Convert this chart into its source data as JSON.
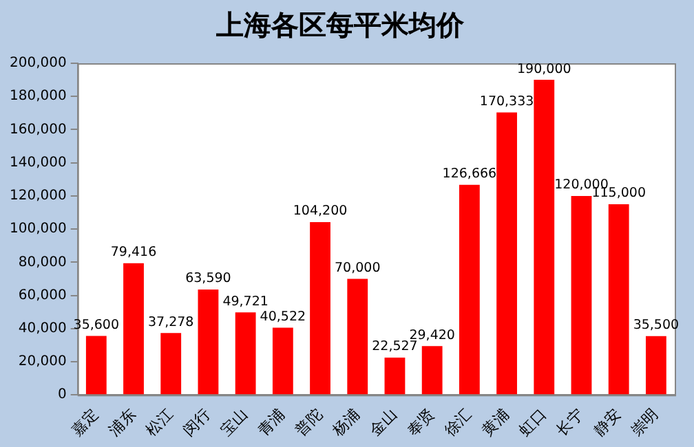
{
  "chart_data": {
    "type": "bar",
    "title": "上海各区每平米均价",
    "categories": [
      "嘉定",
      "浦东",
      "松江",
      "闵行",
      "宝山",
      "青浦",
      "普陀",
      "杨浦",
      "金山",
      "奉贤",
      "徐汇",
      "黄浦",
      "虹口",
      "长宁",
      "静安",
      "崇明"
    ],
    "values": [
      35600,
      79416,
      37278,
      63590,
      49721,
      40522,
      104200,
      70000,
      22527,
      29420,
      126666,
      170333,
      190000,
      120000,
      115000,
      35500
    ],
    "color": "#ff0000",
    "ylim": [
      0,
      200000
    ],
    "yticks": [
      {
        "value": 0,
        "label": "0"
      },
      {
        "value": 20000,
        "label": "20,000"
      },
      {
        "value": 40000,
        "label": "40,000"
      },
      {
        "value": 60000,
        "label": "60,000"
      },
      {
        "value": 80000,
        "label": "80,000"
      },
      {
        "value": 100000,
        "label": "100,000"
      },
      {
        "value": 120000,
        "label": "120,000"
      },
      {
        "value": 140000,
        "label": "140,000"
      },
      {
        "value": 160000,
        "label": "160,000"
      },
      {
        "value": 180000,
        "label": "180,000"
      },
      {
        "value": 200000,
        "label": "200,000"
      }
    ],
    "value_labels": [
      "35,600",
      "79,416",
      "37,278",
      "63,590",
      "49,721",
      "40,522",
      "104,200",
      "70,000",
      "22,527",
      "29,420",
      "126,666",
      "170,333",
      "190,000",
      "120,000",
      "115,000",
      "35,500"
    ],
    "grid": false,
    "legend": false
  }
}
